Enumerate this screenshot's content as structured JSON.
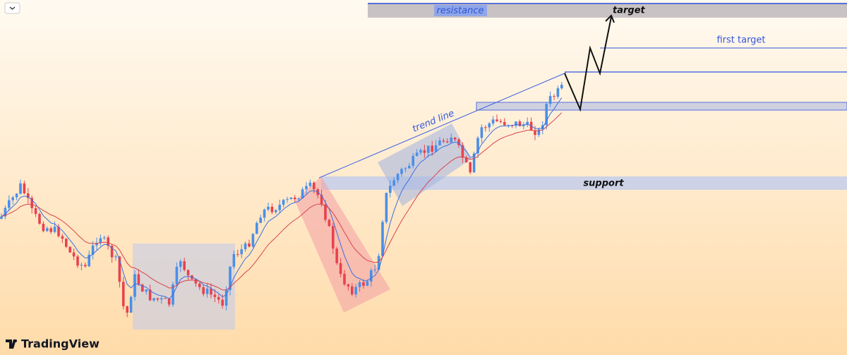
{
  "annotations": {
    "resistance": "resistance",
    "target": "target",
    "first_target": "first target",
    "trend_line": "trend line",
    "support": "support"
  },
  "brand": "TradingView"
}
